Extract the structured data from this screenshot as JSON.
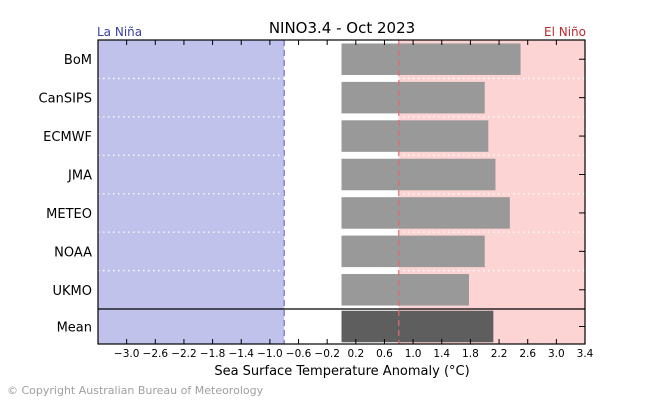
{
  "copyright": "© Copyright Australian Bureau of Meteorology",
  "colors": {
    "la_nina_zone": "#c0c2ec",
    "el_nino_zone": "#fdd4d4",
    "model_bar": "#999999",
    "mean_bar": "#5e5e5e",
    "la_nina_text": "#3b3f9c",
    "el_nino_text": "#c0282c",
    "la_nina_threshold_line": "#6b6fc8",
    "el_nino_threshold_line": "#e06c6c",
    "separator_dots": "#ffffff"
  },
  "chart_data": {
    "type": "bar",
    "orientation": "horizontal",
    "title": "NINO3.4 - Oct 2023",
    "xlabel": "Sea Surface Temperature Anomaly (°C)",
    "ylabel": "",
    "xlim": [
      -3.4,
      3.4
    ],
    "xticks": [
      "−3.0",
      "−2.6",
      "−2.2",
      "−1.8",
      "−1.4",
      "−1.0",
      "−0.6",
      "−0.2",
      "0.2",
      "0.6",
      "1.0",
      "1.4",
      "1.8",
      "2.2",
      "2.6",
      "3.0",
      "3.4"
    ],
    "la_nina_label": "La Niña",
    "el_nino_label": "El Niño",
    "la_nina_threshold": -0.8,
    "el_nino_threshold": 0.8,
    "bar_base": 0,
    "categories": [
      "BoM",
      "CanSIPS",
      "ECMWF",
      "JMA",
      "METEO",
      "NOAA",
      "UKMO"
    ],
    "values": [
      2.5,
      2.0,
      2.05,
      2.15,
      2.35,
      2.0,
      1.78
    ],
    "mean": {
      "label": "Mean",
      "value": 2.12
    }
  }
}
